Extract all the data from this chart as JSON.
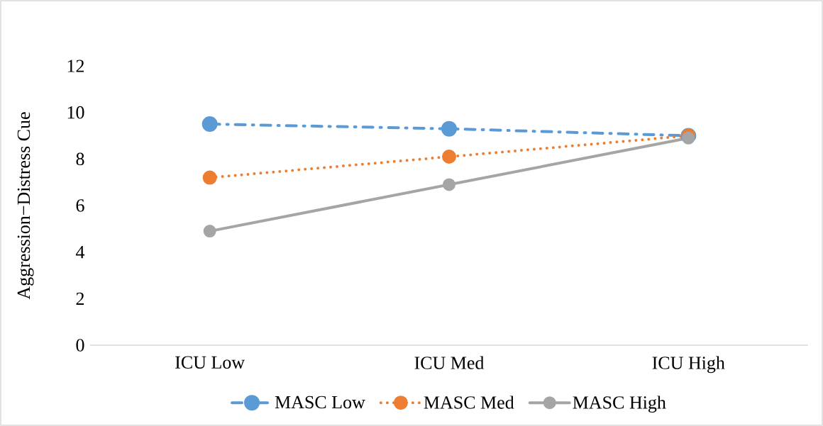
{
  "chart_data": {
    "type": "line",
    "ylabel": "Aggression−Distress Cue",
    "categories": [
      "ICU Low",
      "ICU Med",
      "ICU High"
    ],
    "series": [
      {
        "name": "MASC Low",
        "color": "#5b9bd5",
        "values": [
          9.5,
          9.3,
          9.0
        ],
        "line_style": "dashed"
      },
      {
        "name": "MASC Med",
        "color": "#ed7d31",
        "values": [
          7.2,
          8.1,
          9.0
        ],
        "line_style": "dotted"
      },
      {
        "name": "MASC High",
        "color": "#a5a5a5",
        "values": [
          4.9,
          6.9,
          8.9
        ],
        "line_style": "solid"
      }
    ],
    "ylim": [
      0,
      12
    ],
    "yticks": [
      0,
      2,
      4,
      6,
      8,
      10,
      12
    ],
    "marker": "circle",
    "legend": "bottom"
  }
}
